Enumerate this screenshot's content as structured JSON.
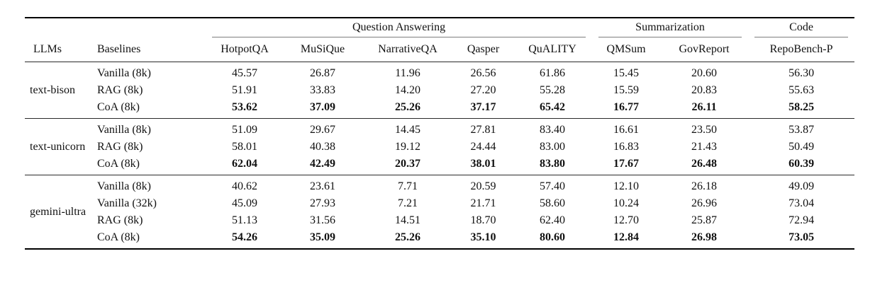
{
  "page": {
    "background": "#ffffff",
    "text_color": "#111111"
  },
  "table": {
    "column_groups": [
      {
        "label": "Question Answering",
        "span": 5
      },
      {
        "label": "Summarization",
        "span": 2
      },
      {
        "label": "Code",
        "span": 1
      }
    ],
    "column_headers": [
      "LLMs",
      "Baselines",
      "HotpotQA",
      "MuSiQue",
      "NarrativeQA",
      "Qasper",
      "QuALITY",
      "QMSum",
      "GovReport",
      "RepoBench-P"
    ],
    "llm_groups": [
      {
        "llm": "text-bison",
        "rows": [
          {
            "baseline": "Vanilla (8k)",
            "bold": false,
            "values": [
              "45.57",
              "26.87",
              "11.96",
              "26.56",
              "61.86",
              "15.45",
              "20.60",
              "56.30"
            ]
          },
          {
            "baseline": "RAG (8k)",
            "bold": false,
            "values": [
              "51.91",
              "33.83",
              "14.20",
              "27.20",
              "55.28",
              "15.59",
              "20.83",
              "55.63"
            ]
          },
          {
            "baseline": "CoA (8k)",
            "bold": true,
            "values": [
              "53.62",
              "37.09",
              "25.26",
              "37.17",
              "65.42",
              "16.77",
              "26.11",
              "58.25"
            ]
          }
        ]
      },
      {
        "llm": "text-unicorn",
        "rows": [
          {
            "baseline": "Vanilla (8k)",
            "bold": false,
            "values": [
              "51.09",
              "29.67",
              "14.45",
              "27.81",
              "83.40",
              "16.61",
              "23.50",
              "53.87"
            ]
          },
          {
            "baseline": "RAG (8k)",
            "bold": false,
            "values": [
              "58.01",
              "40.38",
              "19.12",
              "24.44",
              "83.00",
              "16.83",
              "21.43",
              "50.49"
            ]
          },
          {
            "baseline": "CoA (8k)",
            "bold": true,
            "values": [
              "62.04",
              "42.49",
              "20.37",
              "38.01",
              "83.80",
              "17.67",
              "26.48",
              "60.39"
            ]
          }
        ]
      },
      {
        "llm": "gemini-ultra",
        "rows": [
          {
            "baseline": "Vanilla (8k)",
            "bold": false,
            "values": [
              "40.62",
              "23.61",
              "7.71",
              "20.59",
              "57.40",
              "12.10",
              "26.18",
              "49.09"
            ]
          },
          {
            "baseline": "Vanilla (32k)",
            "bold": false,
            "values": [
              "45.09",
              "27.93",
              "7.21",
              "21.71",
              "58.60",
              "10.24",
              "26.96",
              "73.04"
            ]
          },
          {
            "baseline": "RAG (8k)",
            "bold": false,
            "values": [
              "51.13",
              "31.56",
              "14.51",
              "18.70",
              "62.40",
              "12.70",
              "25.87",
              "72.94"
            ]
          },
          {
            "baseline": "CoA (8k)",
            "bold": true,
            "values": [
              "54.26",
              "35.09",
              "25.26",
              "35.10",
              "80.60",
              "12.84",
              "26.98",
              "73.05"
            ]
          }
        ]
      }
    ],
    "colors": {
      "rule_heavy": "#000000",
      "rule_mid": "#2a2a2a",
      "cmidrule": "#7d7d7d"
    }
  }
}
